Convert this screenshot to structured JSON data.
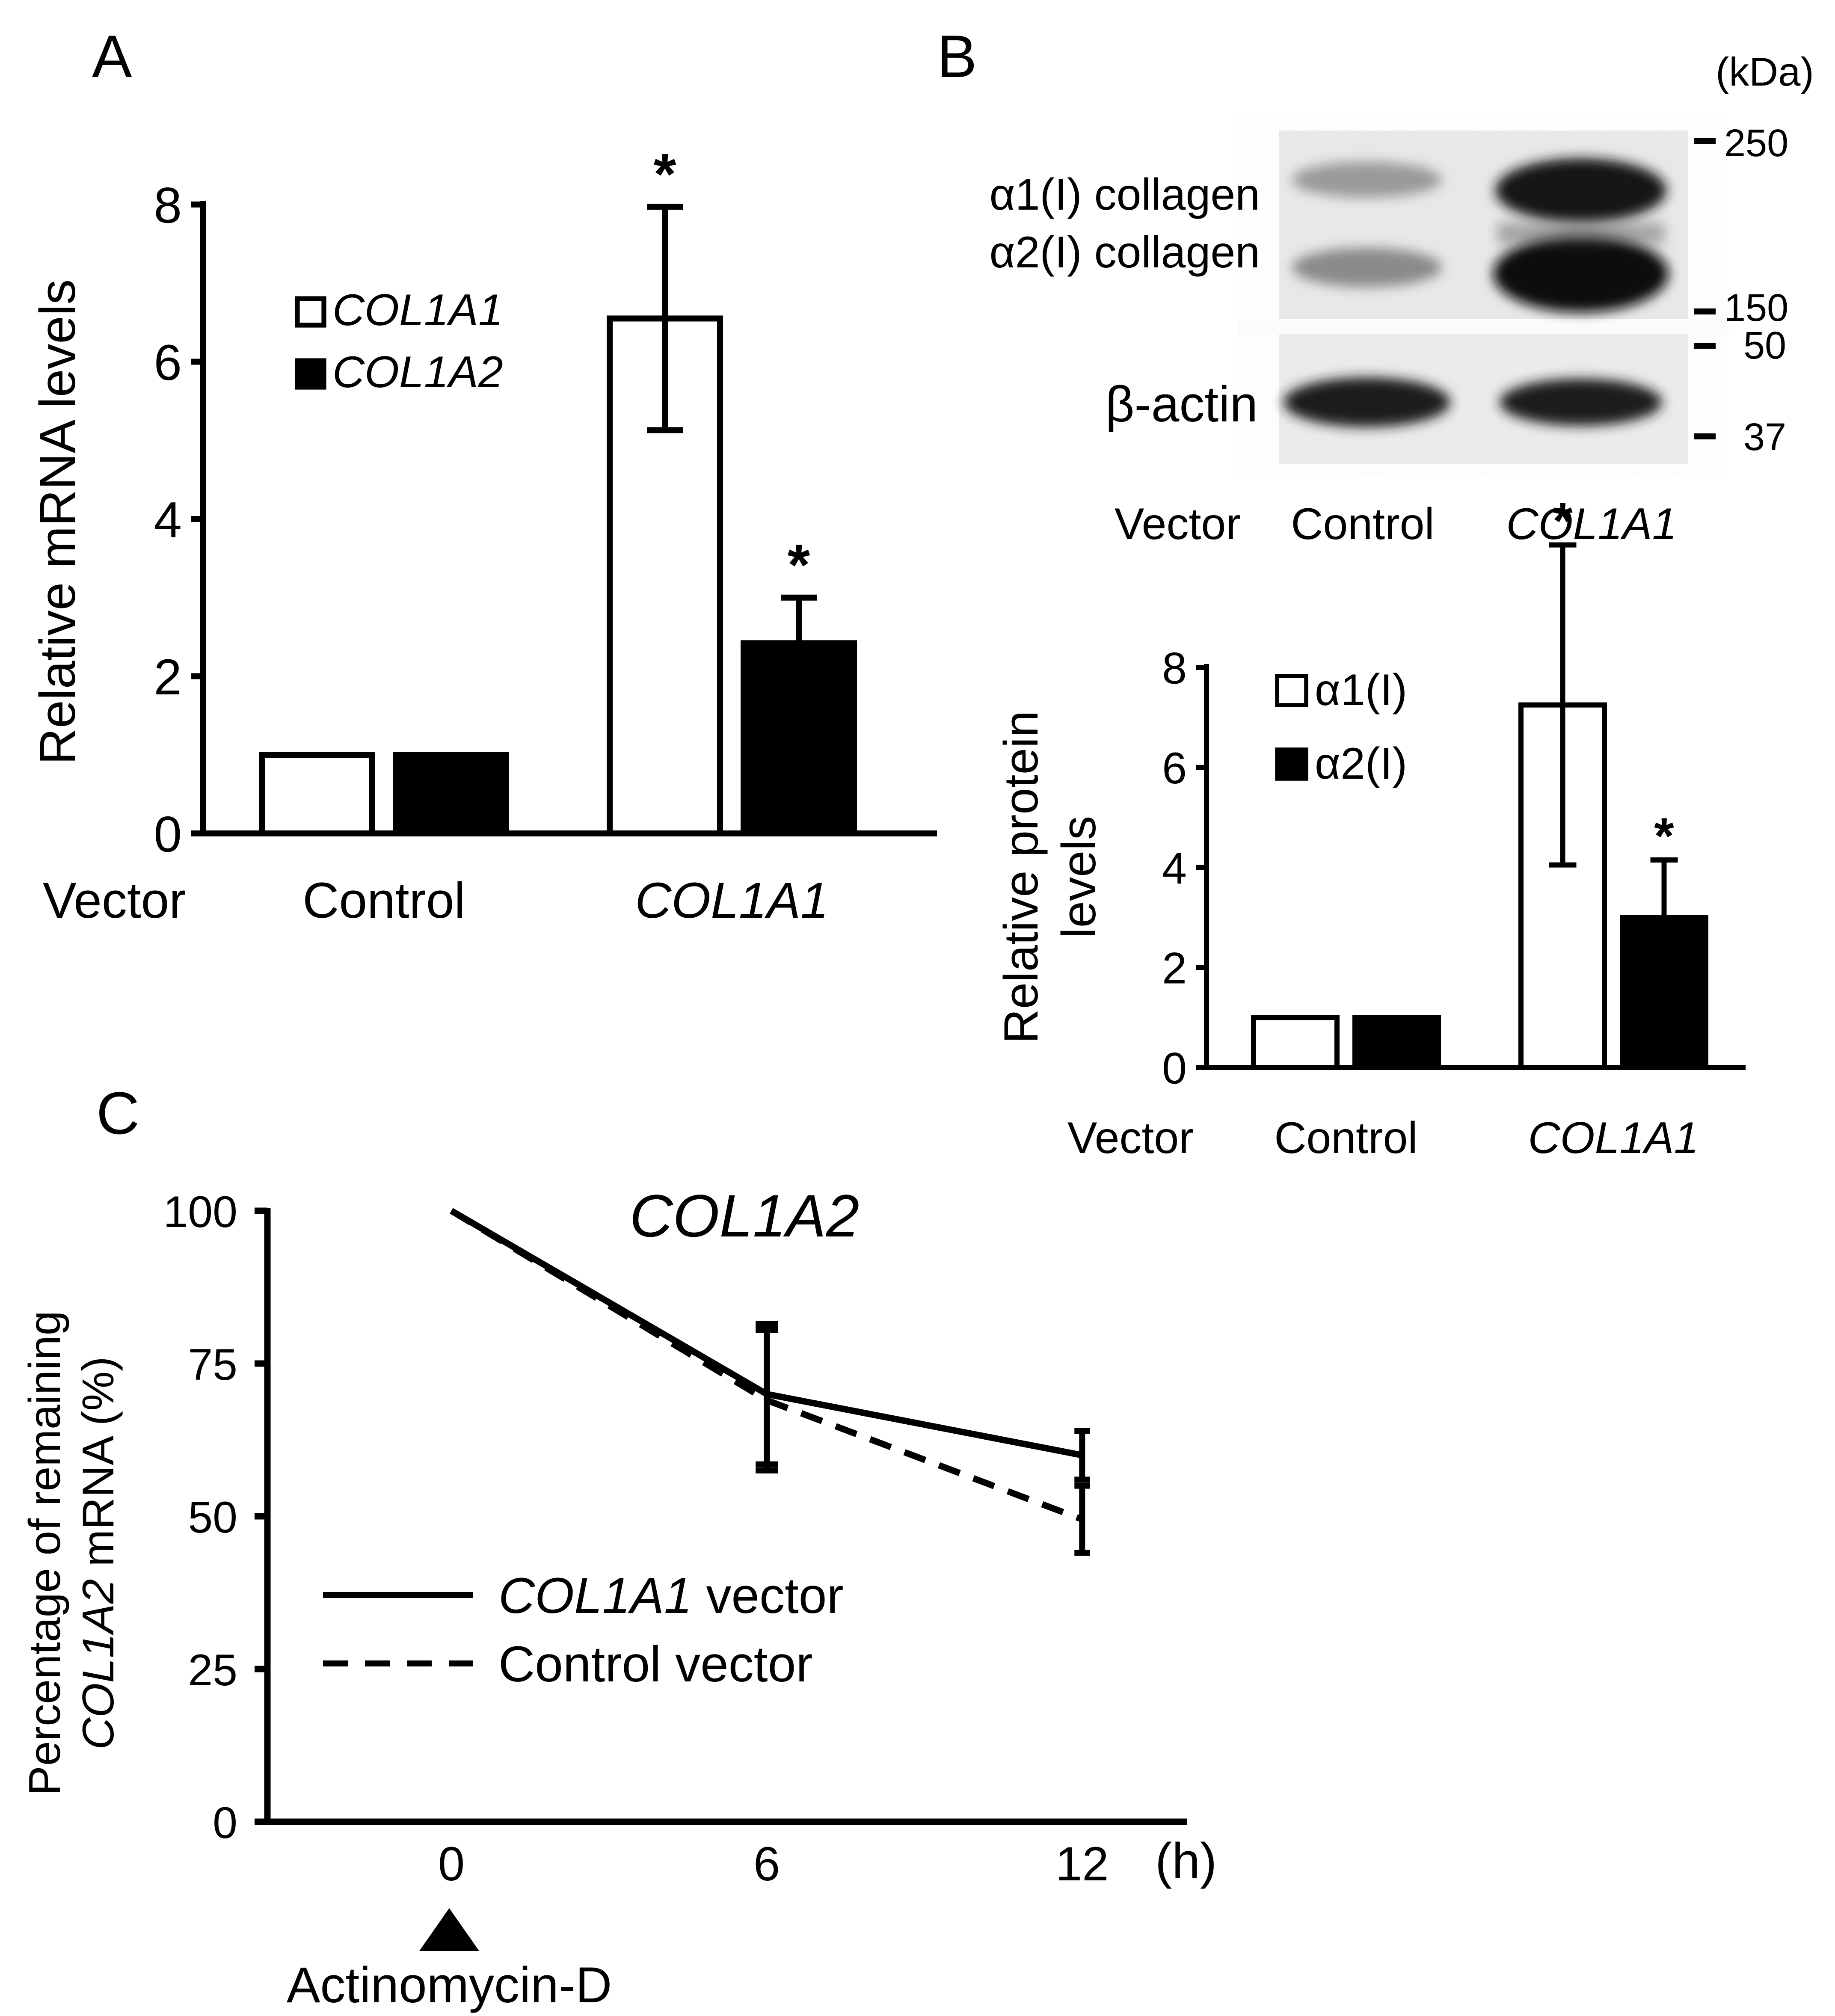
{
  "panels": {
    "A": {
      "label": "A",
      "ylabel": "Relative mRNA levels",
      "row_label": "Vector",
      "legend": [
        "COL1A1",
        "COL1A2"
      ]
    },
    "B": {
      "label": "B",
      "blot": {
        "kda_label": "(kDa)",
        "markers": [
          "250",
          "150",
          "50",
          "37"
        ],
        "bands": [
          "α1(I) collagen",
          "α2(I) collagen",
          "β-actin"
        ],
        "lane_row_label": "Vector",
        "lanes": [
          "Control",
          "COL1A1"
        ]
      },
      "ylabel_lines": [
        "Relative protein",
        "levels"
      ],
      "row_label": "Vector",
      "legend": [
        "α1(I)",
        "α2(I)"
      ]
    },
    "C": {
      "label": "C",
      "title": "COL1A2",
      "ylabel_line1": "Percentage of remaining",
      "ylabel_line2_italic": "COL1A2",
      "ylabel_line2_rest": " mRNA (%)",
      "xunit": "(h)",
      "treatment": "Actinomycin-D",
      "legend": [
        {
          "italic": "COL1A1",
          "rest": " vector"
        },
        {
          "italic": "",
          "rest": "Control vector"
        }
      ]
    }
  },
  "chart_data": [
    {
      "type": "bar",
      "panel": "A",
      "categories": [
        "Control",
        "COL1A1"
      ],
      "series": [
        {
          "name": "COL1A1",
          "values": [
            1.0,
            6.55
          ],
          "errors": [
            0,
            1.42
          ],
          "significant": [
            false,
            true
          ],
          "fill": "#ffffff"
        },
        {
          "name": "COL1A2",
          "values": [
            1.0,
            2.42
          ],
          "errors": [
            0,
            0.58
          ],
          "significant": [
            false,
            true
          ],
          "fill": "#000000"
        }
      ],
      "ylabel": "Relative mRNA levels",
      "ylim": [
        0,
        8
      ],
      "yticks": [
        0,
        2,
        4,
        6,
        8
      ],
      "grid": false,
      "legend_position": "top-left"
    },
    {
      "type": "bar",
      "panel": "B",
      "categories": [
        "Control",
        "COL1A1"
      ],
      "series": [
        {
          "name": "α1(I)",
          "values": [
            1.0,
            7.25
          ],
          "errors": [
            0,
            3.2
          ],
          "significant": [
            false,
            true
          ],
          "fill": "#ffffff"
        },
        {
          "name": "α2(I)",
          "values": [
            1.0,
            3.0
          ],
          "errors": [
            0,
            1.15
          ],
          "significant": [
            false,
            true
          ],
          "fill": "#000000"
        }
      ],
      "ylabel": "Relative protein levels",
      "ylim": [
        0,
        8
      ],
      "yticks": [
        0,
        2,
        4,
        6,
        8
      ],
      "grid": false,
      "legend_position": "top-left"
    },
    {
      "type": "line",
      "panel": "C",
      "title": "COL1A2",
      "x": [
        0,
        6,
        12
      ],
      "xticks": [
        0,
        6,
        12
      ],
      "xlim": [
        -3.5,
        14
      ],
      "series": [
        {
          "name": "COL1A1 vector",
          "values": [
            100,
            70,
            60
          ],
          "errors": [
            0,
            11.5,
            4
          ],
          "dash": false
        },
        {
          "name": "Control vector",
          "values": [
            100,
            69,
            49.5
          ],
          "errors": [
            0,
            11.5,
            5.5
          ],
          "dash": true
        }
      ],
      "ylabel": "Percentage of remaining COL1A2 mRNA (%)",
      "ylim": [
        0,
        100
      ],
      "yticks": [
        0,
        25,
        50,
        75,
        100
      ],
      "grid": false,
      "legend_position": "bottom-left"
    }
  ]
}
